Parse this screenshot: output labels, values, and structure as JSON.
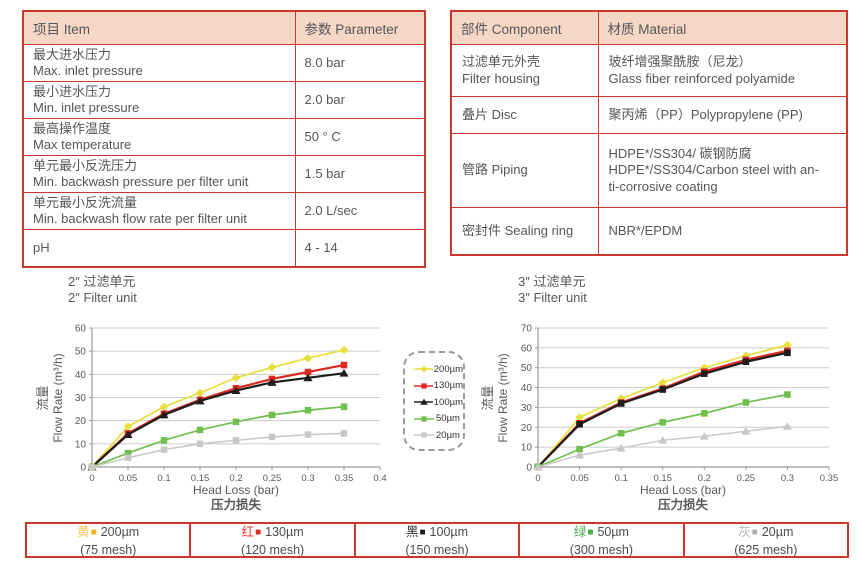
{
  "spec_table": {
    "headers": [
      "项目 Item",
      "参数 Parameter"
    ],
    "rows": [
      {
        "item": [
          "最大进水压力",
          "Max. inlet pressure"
        ],
        "value": "8.0 bar"
      },
      {
        "item": [
          "最小进水压力",
          "Min. inlet pressure"
        ],
        "value": "2.0 bar"
      },
      {
        "item": [
          "最高操作温度",
          "Max temperature"
        ],
        "value": "50 ° C"
      },
      {
        "item": [
          "单元最小反洗压力",
          "Min. backwash pressure per filter unit"
        ],
        "value": "1.5 bar"
      },
      {
        "item": [
          "单元最小反洗流量",
          "Min. backwash flow rate per filter unit"
        ],
        "value": "2.0 L/sec"
      },
      {
        "item": [
          "pH"
        ],
        "value": "4 - 14"
      }
    ]
  },
  "material_table": {
    "headers": [
      "部件 Component",
      "材质 Material"
    ],
    "rows": [
      {
        "component": [
          "过滤单元外壳",
          "Filter housing"
        ],
        "material": [
          "玻纤增强聚酰胺（尼龙）",
          "Glass fiber reinforced polyamide"
        ]
      },
      {
        "component": [
          "叠片 Disc"
        ],
        "material": [
          "聚丙烯（PP）Polypropylene (PP)"
        ]
      },
      {
        "component": [
          "管路 Piping"
        ],
        "material": [
          "HDPE*/SS304/ 碳钢防腐",
          "HDPE*/SS304/Carbon steel with an-",
          "ti-corrosive coating"
        ]
      },
      {
        "component": [
          "密封件 Sealing ring"
        ],
        "material": [
          "NBR*/EPDM"
        ]
      }
    ]
  },
  "chart_data": [
    {
      "type": "line",
      "title_zh": "2″ 过滤单元",
      "title_en": "2″ Filter unit",
      "xlabel_en": "Head Loss (bar)",
      "xlabel_zh": "压力损失",
      "ylabel_zh": "流量",
      "ylabel_en": "Flow Rate (m³/h)",
      "xlim": [
        0,
        0.4
      ],
      "ylim": [
        0,
        60
      ],
      "xticks": [
        0,
        0.05,
        0.1,
        0.15,
        0.2,
        0.25,
        0.3,
        0.35,
        0.4
      ],
      "yticks": [
        0,
        10,
        20,
        30,
        40,
        50,
        60
      ],
      "grid": true,
      "x": [
        0,
        0.05,
        0.1,
        0.15,
        0.2,
        0.25,
        0.3,
        0.35
      ],
      "series": [
        {
          "name": "200µm",
          "color": "#e8df3a",
          "marker": "diamond",
          "width": 1.7,
          "values": [
            0,
            17.5,
            26,
            32,
            38.5,
            43,
            47,
            50.5
          ]
        },
        {
          "name": "130µm",
          "color": "#dd2a22",
          "marker": "square",
          "width": 2.2,
          "values": [
            0,
            14.5,
            23,
            29,
            34,
            38,
            41,
            44
          ]
        },
        {
          "name": "100µm",
          "color": "#1d1d1d",
          "marker": "triangle",
          "width": 2.2,
          "values": [
            0,
            14,
            22.5,
            28.5,
            33,
            36.5,
            38.5,
            40.5
          ]
        },
        {
          "name": "50µm",
          "color": "#6fbf4d",
          "marker": "square",
          "width": 1.7,
          "values": [
            0,
            6,
            11.5,
            16,
            19.5,
            22.5,
            24.5,
            26
          ]
        },
        {
          "name": "20µm",
          "color": "#c8c8c8",
          "marker": "square",
          "width": 1.5,
          "values": [
            0,
            4,
            7.5,
            10,
            11.5,
            13,
            14,
            14.5
          ]
        }
      ]
    },
    {
      "type": "line",
      "title_zh": "3″ 过滤单元",
      "title_en": "3″ Filter unit",
      "xlabel_en": "Head Loss (bar)",
      "xlabel_zh": "压力损失",
      "ylabel_zh": "流量",
      "ylabel_en": "Flow Rate (m³/h)",
      "xlim": [
        0,
        0.35
      ],
      "ylim": [
        0,
        70
      ],
      "xticks": [
        0,
        0.05,
        0.1,
        0.15,
        0.2,
        0.25,
        0.3,
        0.35
      ],
      "yticks": [
        0,
        10,
        20,
        30,
        40,
        50,
        60,
        70
      ],
      "grid": true,
      "x": [
        0,
        0.05,
        0.1,
        0.15,
        0.2,
        0.25,
        0.3
      ],
      "series": [
        {
          "name": "200µm",
          "color": "#e8df3a",
          "marker": "diamond",
          "width": 1.7,
          "values": [
            0,
            25,
            34.5,
            42.5,
            50,
            56,
            61.5
          ]
        },
        {
          "name": "130µm",
          "color": "#dd2a22",
          "marker": "square",
          "width": 2.2,
          "values": [
            0,
            22,
            32.5,
            39.5,
            48,
            54,
            58.5
          ]
        },
        {
          "name": "100µm",
          "color": "#1d1d1d",
          "marker": "square",
          "width": 2.2,
          "values": [
            0,
            21.5,
            32,
            39,
            47,
            53,
            57.5
          ]
        },
        {
          "name": "50µm",
          "color": "#6fbf4d",
          "marker": "square",
          "width": 1.7,
          "values": [
            0,
            9,
            17,
            22.5,
            27,
            32.5,
            36.5
          ]
        },
        {
          "name": "20µm",
          "color": "#c8c8c8",
          "marker": "triangle",
          "width": 1.5,
          "values": [
            0,
            6,
            9.5,
            13.5,
            15.5,
            18,
            20.5
          ]
        }
      ]
    }
  ],
  "center_legend": {
    "items": [
      {
        "label": "200µm",
        "color": "#e8df3a",
        "marker": "diamond"
      },
      {
        "label": "130µm",
        "color": "#dd2a22",
        "marker": "square"
      },
      {
        "label": "100µm",
        "color": "#1d1d1d",
        "marker": "triangle"
      },
      {
        "label": "50µm",
        "color": "#6fbf4d",
        "marker": "square"
      },
      {
        "label": "20µm",
        "color": "#c8c8c8",
        "marker": "square"
      }
    ]
  },
  "bottom_legend": {
    "cells": [
      {
        "name_zh": "黄",
        "name_color": "#eec45a",
        "swatch_color": "#f2b31b",
        "size": "200µm",
        "mesh": "(75 mesh)"
      },
      {
        "name_zh": "红",
        "name_color": "#e8382c",
        "swatch_color": "#dd2a22",
        "size": "130µm",
        "mesh": "(120 mesh)"
      },
      {
        "name_zh": "黑",
        "name_color": "#2a2a2a",
        "swatch_color": "#1d1d1d",
        "size": "100µm",
        "mesh": "(150 mesh)"
      },
      {
        "name_zh": "绿",
        "name_color": "#4caf50",
        "swatch_color": "#46b048",
        "size": "50µm",
        "mesh": "(300 mesh)"
      },
      {
        "name_zh": "灰",
        "name_color": "#b5b5b5",
        "swatch_color": "#adadad",
        "size": "20µm",
        "mesh": "(625 mesh)"
      }
    ]
  },
  "colors": {
    "table_border": "#cb372c",
    "table_header_bg": "#f6d6c5",
    "grid_line": "#cccccc",
    "axis_line": "#9a9a9a",
    "text": "#55565a"
  }
}
